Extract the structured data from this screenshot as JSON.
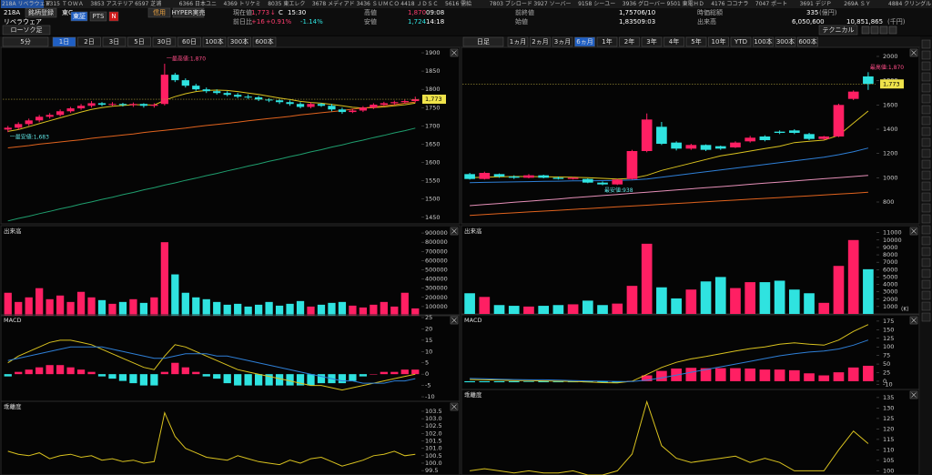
{
  "ticker_bar": [
    "218A リベラウェア",
    "6315 ＴＯＷＡ",
    "3853 アステリア",
    "6597 芝浦",
    "6366 日本ユニ",
    "4369 トリケミ",
    "8035 東エレク",
    "3678 メディアド",
    "3436 ＳＵＭＣＯ",
    "4418 ＪＤＳＣ",
    "5616 需給",
    "7803 ブシロード",
    "3927 ソーバー",
    "9158 シーユー",
    "3936 グローバー",
    "9501 東電ＨＤ",
    "4176 ココナラ",
    "7047 ポート",
    "3691 デジＰ",
    "269A ＳＹ",
    "4884 クリングル"
  ],
  "header": {
    "code": "218A",
    "name": "リベラウェア",
    "register": "銘柄登録",
    "market": "東G",
    "exchange": "東証",
    "pts": "PTS",
    "news": "N",
    "margin": "信用",
    "hyper": "HYPER実売",
    "current_label": "現在値",
    "current": "1,773",
    "current_arrow": "↓",
    "current_flag": "C",
    "current_time": "15:30",
    "change_label": "前日比",
    "change": "+16",
    "change_pct": "+0.91%",
    "change_pct2": "-1.14%",
    "high_label": "高値",
    "high": "1,870",
    "high_time": "09:08",
    "low_label": "安値",
    "low": "1,724",
    "low_time": "14:18",
    "prev_close_label": "前終値",
    "prev_close": "1,757",
    "prev_close_date": "06/10",
    "open_label": "始値",
    "open": "1,835",
    "open_time": "09:03",
    "market_cap_label": "時価総額",
    "market_cap": "335",
    "market_cap_unit": "(億円)",
    "volume_label": "出来高",
    "volume": "6,050,600",
    "turnover": "10,851,865",
    "turnover_unit": "(千円)"
  },
  "toolbar": {
    "chart_style": "ローソク足",
    "left_interval": "5分",
    "left_ranges": [
      "1日",
      "2日",
      "3日",
      "5日",
      "30日",
      "60日",
      "100本",
      "300本",
      "600本"
    ],
    "right_interval": "日足",
    "right_ranges": [
      "1ヵ月",
      "2ヵ月",
      "3ヵ月",
      "6ヵ月",
      "1年",
      "2年",
      "3年",
      "4年",
      "5年",
      "10年",
      "YTD",
      "100本",
      "300本",
      "600本"
    ],
    "technical": "テクニカル"
  },
  "chart_data": [
    {
      "type": "candlestick",
      "up_color": "#ff1f63",
      "down_color": "#2fe3e0",
      "open": [
        1690,
        1695,
        1705,
        1715,
        1725,
        1730,
        1740,
        1748,
        1755,
        1762,
        1758,
        1760,
        1757,
        1760,
        1755,
        1760,
        1840,
        1825,
        1810,
        1800,
        1795,
        1790,
        1785,
        1780,
        1778,
        1772,
        1770,
        1765,
        1760,
        1752,
        1760,
        1755,
        1745,
        1738,
        1742,
        1750,
        1758,
        1762,
        1765,
        1768
      ],
      "high": [
        1700,
        1710,
        1720,
        1730,
        1735,
        1745,
        1752,
        1760,
        1768,
        1765,
        1765,
        1763,
        1764,
        1762,
        1762,
        1870,
        1845,
        1830,
        1815,
        1805,
        1800,
        1795,
        1790,
        1786,
        1782,
        1776,
        1774,
        1770,
        1765,
        1764,
        1763,
        1760,
        1750,
        1746,
        1754,
        1762,
        1766,
        1769,
        1772,
        1780
      ],
      "low": [
        1683,
        1690,
        1700,
        1710,
        1720,
        1726,
        1736,
        1744,
        1750,
        1754,
        1754,
        1753,
        1752,
        1750,
        1750,
        1756,
        1820,
        1805,
        1796,
        1790,
        1786,
        1781,
        1776,
        1774,
        1768,
        1765,
        1760,
        1755,
        1748,
        1748,
        1752,
        1740,
        1733,
        1735,
        1738,
        1746,
        1754,
        1758,
        1761,
        1764
      ],
      "close": [
        1695,
        1705,
        1715,
        1725,
        1730,
        1740,
        1748,
        1755,
        1762,
        1758,
        1760,
        1757,
        1760,
        1755,
        1758,
        1840,
        1825,
        1810,
        1800,
        1795,
        1790,
        1785,
        1780,
        1778,
        1772,
        1770,
        1765,
        1760,
        1752,
        1760,
        1755,
        1745,
        1738,
        1742,
        1750,
        1758,
        1762,
        1765,
        1768,
        1773
      ],
      "series": [
        {
          "color": "#d9c21f",
          "values": [
            1685,
            1690,
            1698,
            1706,
            1714,
            1722,
            1730,
            1738,
            1745,
            1750,
            1754,
            1756,
            1758,
            1758,
            1757,
            1770,
            1780,
            1788,
            1794,
            1797,
            1798,
            1797,
            1794,
            1790,
            1786,
            1781,
            1776,
            1772,
            1767,
            1764,
            1762,
            1759,
            1755,
            1751,
            1749,
            1750,
            1752,
            1755,
            1758,
            1762
          ]
        },
        {
          "color": "#e0631e",
          "values": [
            1640,
            1643,
            1646,
            1650,
            1653,
            1656,
            1659,
            1662,
            1666,
            1669,
            1672,
            1675,
            1678,
            1682,
            1685,
            1688,
            1691,
            1694,
            1698,
            1701,
            1704,
            1707,
            1710,
            1714,
            1717,
            1720,
            1723,
            1726,
            1730,
            1733,
            1736,
            1739,
            1742,
            1746,
            1749,
            1752,
            1755,
            1758,
            1762,
            1765
          ]
        },
        {
          "color": "#1f9e6e",
          "values": [
            1440,
            1447,
            1453,
            1460,
            1466,
            1473,
            1479,
            1486,
            1492,
            1499,
            1505,
            1512,
            1518,
            1525,
            1531,
            1538,
            1544,
            1551,
            1557,
            1564,
            1570,
            1577,
            1583,
            1590,
            1596,
            1603,
            1609,
            1616,
            1622,
            1629,
            1635,
            1642,
            1648,
            1655,
            1661,
            1668,
            1674,
            1681,
            1687,
            1694
          ]
        }
      ],
      "annotations": [
        {
          "label": "一最高値:1,870",
          "value": 1870,
          "color": "#ff4d88"
        },
        {
          "label": "一最安値:1,683",
          "value": 1683,
          "color": "#5fe6e6"
        }
      ],
      "price_marker": {
        "value": 1773,
        "label": "1,773"
      },
      "ylim": [
        1432,
        1910
      ],
      "yticks": [
        1900,
        1850,
        1800,
        1750,
        1700,
        1650,
        1600,
        1550,
        1500,
        1450
      ]
    },
    {
      "type": "bar",
      "title": "出来高",
      "values": [
        250000,
        150000,
        200000,
        300000,
        180000,
        220000,
        150000,
        260000,
        200000,
        170000,
        130000,
        150000,
        180000,
        140000,
        200000,
        800000,
        450000,
        250000,
        200000,
        180000,
        150000,
        120000,
        130000,
        100000,
        120000,
        150000,
        110000,
        130000,
        160000,
        100000,
        120000,
        140000,
        150000,
        110000,
        90000,
        120000,
        150000,
        100000,
        250000,
        80000
      ],
      "ylim": [
        0,
        960000
      ],
      "yticks": [
        900000,
        800000,
        700000,
        600000,
        500000,
        400000,
        300000,
        200000,
        100000
      ]
    },
    {
      "type": "macd",
      "title": "MACD",
      "series": [
        {
          "color": "#d9c21f",
          "values": [
            5,
            8,
            10,
            12,
            14,
            15,
            15,
            14,
            13,
            11,
            9,
            7,
            5,
            3,
            2,
            8,
            13,
            12,
            10,
            8,
            6,
            4,
            2,
            1,
            0,
            -1,
            -2,
            -3,
            -4,
            -5,
            -5,
            -6,
            -7,
            -6,
            -5,
            -4,
            -3,
            -2,
            -1,
            0
          ]
        },
        {
          "color": "#2e7fd6",
          "values": [
            6,
            7,
            8,
            9,
            10,
            11,
            12,
            12,
            12,
            12,
            11,
            10,
            9,
            8,
            7,
            7,
            8,
            9,
            9,
            9,
            8,
            8,
            7,
            6,
            5,
            4,
            3,
            2,
            1,
            0,
            -1,
            -2,
            -3,
            -3,
            -4,
            -4,
            -4,
            -3,
            -3,
            -2
          ]
        }
      ],
      "histogram": {
        "up_color": "#ff1f63",
        "down_color": "#2fe3e0",
        "values": [
          -1,
          1,
          2,
          3,
          4,
          4,
          3,
          2,
          1,
          -1,
          -2,
          -3,
          -4,
          -5,
          -5,
          1,
          5,
          3,
          1,
          -1,
          -2,
          -4,
          -5,
          -5,
          -5,
          -5,
          -5,
          -5,
          -5,
          -5,
          -4,
          -4,
          -4,
          -3,
          -1,
          0,
          1,
          1,
          2,
          2
        ]
      },
      "ylim": [
        -12,
        25.4
      ],
      "yticks": [
        25,
        20,
        15,
        10,
        5,
        0,
        -5,
        -10
      ]
    },
    {
      "type": "line",
      "title": "乖離度",
      "color": "#d9c21f",
      "values": [
        100.8,
        100.6,
        100.5,
        100.7,
        100.3,
        100.5,
        100.6,
        100.4,
        100.5,
        100.2,
        100.3,
        100.1,
        100.2,
        100.0,
        100.1,
        103.4,
        101.8,
        101.0,
        100.7,
        100.4,
        100.3,
        100.2,
        100.5,
        100.3,
        100.1,
        100.0,
        99.9,
        100.2,
        100.0,
        100.3,
        100.4,
        100.1,
        99.8,
        100.0,
        100.2,
        100.5,
        100.6,
        100.8,
        100.5,
        100.6
      ],
      "ylim": [
        99.2,
        104.05
      ],
      "yticks": [
        103.5,
        {
          "value": 103,
          "label": "103.0"
        },
        102.5,
        {
          "value": 102,
          "label": "102.0"
        },
        101.5,
        {
          "value": 101,
          "label": "101.0"
        },
        100.5,
        {
          "value": 100,
          "label": "100.0"
        },
        99.5
      ]
    },
    {
      "type": "candlestick",
      "up_color": "#ff1f63",
      "down_color": "#2fe3e0",
      "open": [
        1030,
        990,
        1030,
        1010,
        1000,
        1020,
        1000,
        990,
        990,
        960,
        945,
        990,
        1220,
        1420,
        1290,
        1240,
        1270,
        1260,
        1250,
        1300,
        1340,
        1380,
        1390,
        1360,
        1320,
        1340,
        1650,
        1835
      ],
      "high": [
        1040,
        1050,
        1035,
        1020,
        1030,
        1025,
        1010,
        1005,
        995,
        970,
        990,
        1230,
        1530,
        1460,
        1300,
        1280,
        1275,
        1265,
        1300,
        1345,
        1350,
        1390,
        1400,
        1370,
        1345,
        1610,
        1720,
        1870
      ],
      "low": [
        985,
        985,
        1000,
        990,
        995,
        995,
        985,
        985,
        955,
        938,
        940,
        985,
        1210,
        1270,
        1225,
        1230,
        1220,
        1230,
        1245,
        1290,
        1300,
        1360,
        1360,
        1310,
        1310,
        1335,
        1640,
        1724
      ],
      "close": [
        990,
        1040,
        1010,
        1000,
        1020,
        1000,
        990,
        1000,
        960,
        945,
        985,
        1220,
        1480,
        1280,
        1240,
        1270,
        1230,
        1240,
        1290,
        1330,
        1310,
        1370,
        1370,
        1320,
        1340,
        1600,
        1710,
        1773
      ],
      "series": [
        {
          "color": "#d9c21f",
          "values": [
            1000,
            1005,
            1008,
            1010,
            1010,
            1008,
            1006,
            1004,
            1000,
            995,
            990,
            995,
            1020,
            1060,
            1090,
            1120,
            1150,
            1180,
            1200,
            1220,
            1240,
            1260,
            1290,
            1300,
            1310,
            1350,
            1450,
            1550
          ]
        },
        {
          "color": "#2e7fd6",
          "values": [
            960,
            962,
            964,
            966,
            968,
            970,
            972,
            974,
            975,
            976,
            978,
            982,
            990,
            1005,
            1020,
            1035,
            1050,
            1065,
            1080,
            1095,
            1110,
            1125,
            1140,
            1155,
            1170,
            1190,
            1215,
            1245
          ]
        },
        {
          "color": "#e58fb8",
          "values": [
            770,
            779,
            788,
            798,
            807,
            816,
            825,
            835,
            844,
            853,
            862,
            872,
            881,
            890,
            899,
            909,
            918,
            927,
            936,
            946,
            955,
            964,
            973,
            983,
            992,
            1001,
            1010,
            1020
          ]
        },
        {
          "color": "#e0631e",
          "values": [
            690,
            697,
            704,
            711,
            718,
            725,
            732,
            739,
            746,
            753,
            760,
            767,
            774,
            781,
            788,
            795,
            802,
            809,
            816,
            823,
            830,
            837,
            844,
            851,
            858,
            865,
            872,
            880
          ]
        }
      ],
      "annotations": [
        {
          "label": "最高値:1,870",
          "value": 1870,
          "color": "#ff4d88"
        },
        {
          "label": "最安値:938",
          "value": 938,
          "color": "#5fe6e6"
        }
      ],
      "price_marker": {
        "value": 1773,
        "label": "1,773"
      },
      "ylim": [
        620,
        2060
      ],
      "yticks": [
        2000,
        1800,
        1600,
        1400,
        1200,
        1000,
        800
      ]
    },
    {
      "type": "bar",
      "title": "出来高",
      "y_unit": "(K)",
      "values": [
        2800,
        2300,
        1200,
        1100,
        1000,
        1100,
        1200,
        1300,
        1800,
        1200,
        1400,
        3800,
        9500,
        3600,
        2100,
        3300,
        4400,
        5000,
        3500,
        4300,
        4300,
        4500,
        3300,
        2800,
        1500,
        6500,
        10000,
        6051
      ],
      "ylim": [
        0,
        11700
      ],
      "yticks": [
        11000,
        10000,
        9000,
        8000,
        7000,
        6000,
        5000,
        4000,
        3000,
        2000,
        1000
      ]
    },
    {
      "type": "macd",
      "title": "MACD",
      "series": [
        {
          "color": "#d9c21f",
          "values": [
            5,
            4,
            3,
            2,
            2,
            1,
            0,
            -1,
            -2,
            -4,
            -5,
            0,
            20,
            40,
            55,
            65,
            72,
            80,
            88,
            95,
            100,
            108,
            112,
            108,
            105,
            120,
            145,
            165
          ]
        },
        {
          "color": "#2e7fd6",
          "values": [
            8,
            7,
            6,
            5,
            4,
            4,
            3,
            2,
            1,
            0,
            -1,
            -1,
            3,
            10,
            18,
            26,
            34,
            42,
            50,
            58,
            66,
            74,
            80,
            85,
            88,
            94,
            105,
            120
          ]
        }
      ],
      "histogram": {
        "up_color": "#ff1f63",
        "down_color": "#2fe3e0",
        "values": [
          -3,
          -3,
          -3,
          -3,
          -2,
          -3,
          -3,
          -3,
          -3,
          -4,
          -4,
          1,
          17,
          30,
          37,
          39,
          38,
          38,
          38,
          37,
          34,
          34,
          32,
          23,
          17,
          26,
          40,
          45
        ]
      },
      "ylim": [
        -24,
        188
      ],
      "yticks": [
        175,
        150,
        125,
        100,
        75,
        50,
        25,
        0,
        -10
      ]
    },
    {
      "type": "line",
      "title": "乖離度",
      "color": "#d9c21f",
      "values": [
        100,
        101,
        100,
        99,
        100,
        99,
        99,
        100,
        98,
        98,
        100,
        108,
        133,
        112,
        106,
        104,
        105,
        106,
        107,
        104,
        106,
        104,
        100,
        100,
        100,
        110,
        119,
        113
      ],
      "ylim": [
        98,
        138
      ],
      "yticks": [
        135,
        130,
        125,
        120,
        115,
        110,
        105,
        100
      ]
    }
  ]
}
